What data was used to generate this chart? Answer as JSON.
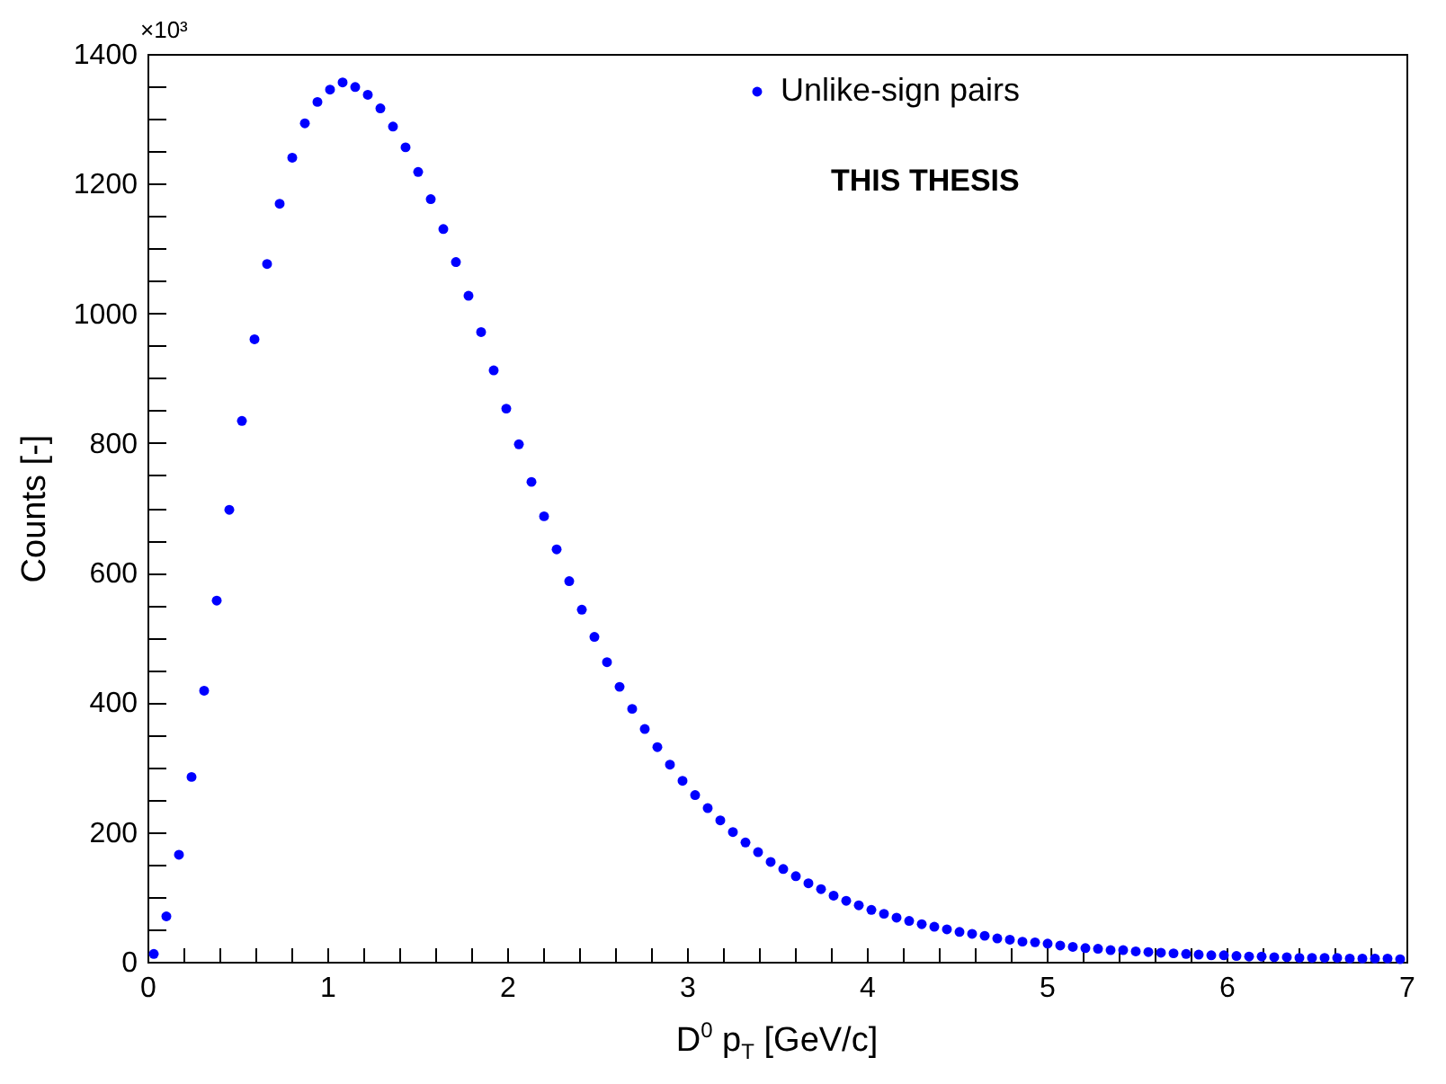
{
  "chart_data": {
    "type": "scatter",
    "xlabel": "D$^{0}$ p$_{T}$ [GeV/c]",
    "ylabel": "Counts [-]",
    "annotations": [
      "×10³",
      "THIS THESIS"
    ],
    "x": [
      0.035,
      0.105,
      0.175,
      0.245,
      0.315,
      0.385,
      0.455,
      0.525,
      0.595,
      0.665,
      0.735,
      0.805,
      0.875,
      0.945,
      1.015,
      1.085,
      1.155,
      1.225,
      1.295,
      1.365,
      1.435,
      1.505,
      1.575,
      1.645,
      1.715,
      1.785,
      1.855,
      1.925,
      1.995,
      2.065,
      2.135,
      2.205,
      2.275,
      2.345,
      2.415,
      2.485,
      2.555,
      2.625,
      2.695,
      2.765,
      2.835,
      2.905,
      2.975,
      3.045,
      3.115,
      3.185,
      3.255,
      3.325,
      3.395,
      3.465,
      3.535,
      3.605,
      3.675,
      3.745,
      3.815,
      3.885,
      3.955,
      4.025,
      4.095,
      4.165,
      4.235,
      4.305,
      4.375,
      4.445,
      4.515,
      4.585,
      4.655,
      4.725,
      4.795,
      4.865,
      4.935,
      5.005,
      5.075,
      5.145,
      5.215,
      5.285,
      5.355,
      5.425,
      5.495,
      5.565,
      5.635,
      5.705,
      5.775,
      5.845,
      5.915,
      5.985,
      6.055,
      6.125,
      6.195,
      6.265,
      6.335,
      6.405,
      6.475,
      6.545,
      6.615,
      6.685,
      6.755,
      6.825,
      6.895,
      6.965
    ],
    "series": [
      {
        "name": "Unlike-sign pairs",
        "color": "#0000ff",
        "values": [
          12,
          70,
          165,
          285,
          418,
          557,
          697,
          834,
          960,
          1076,
          1169,
          1240,
          1293,
          1326,
          1345,
          1356,
          1349,
          1337,
          1316,
          1288,
          1256,
          1218,
          1176,
          1130,
          1079,
          1027,
          971,
          912,
          853,
          798,
          740,
          687,
          636,
          587,
          543,
          501,
          462,
          424,
          390,
          359,
          331,
          304,
          279,
          257,
          237,
          218,
          200,
          184,
          169,
          154,
          143,
          132,
          121,
          112,
          102,
          94,
          87,
          80,
          74,
          68,
          63,
          58,
          54,
          50,
          46,
          43,
          40,
          36,
          34,
          31,
          30,
          28,
          25,
          23,
          21,
          20,
          18,
          18,
          16,
          15,
          14,
          13,
          12,
          11,
          10,
          10,
          9,
          8,
          8,
          7,
          7,
          6,
          6,
          6,
          6,
          5,
          5,
          5,
          5,
          4
        ]
      }
    ],
    "xlim": [
      0,
      7
    ],
    "xticks": [
      0,
      {
        "value": 0.2,
        "label": null
      },
      {
        "value": 0.4,
        "label": null
      },
      {
        "value": 0.6,
        "label": null
      },
      {
        "value": 0.8,
        "label": null
      },
      1,
      {
        "value": 1.2,
        "label": null
      },
      {
        "value": 1.4,
        "label": null
      },
      {
        "value": 1.6,
        "label": null
      },
      {
        "value": 1.8,
        "label": null
      },
      2,
      {
        "value": 2.2,
        "label": null
      },
      {
        "value": 2.4,
        "label": null
      },
      {
        "value": 2.6,
        "label": null
      },
      {
        "value": 2.8,
        "label": null
      },
      3,
      {
        "value": 3.2,
        "label": null
      },
      {
        "value": 3.4,
        "label": null
      },
      {
        "value": 3.6,
        "label": null
      },
      {
        "value": 3.8,
        "label": null
      },
      4,
      {
        "value": 4.2,
        "label": null
      },
      {
        "value": 4.4,
        "label": null
      },
      {
        "value": 4.6,
        "label": null
      },
      {
        "value": 4.8,
        "label": null
      },
      5,
      {
        "value": 5.2,
        "label": null
      },
      {
        "value": 5.4,
        "label": null
      },
      {
        "value": 5.6,
        "label": null
      },
      {
        "value": 5.8,
        "label": null
      },
      6,
      {
        "value": 6.2,
        "label": null
      },
      {
        "value": 6.4,
        "label": null
      },
      {
        "value": 6.6,
        "label": null
      },
      {
        "value": 6.8,
        "label": null
      },
      7
    ],
    "ylim": [
      0,
      1400
    ],
    "yticks": [
      0,
      {
        "value": 50,
        "label": null
      },
      {
        "value": 100,
        "label": null
      },
      {
        "value": 150,
        "label": null
      },
      200,
      {
        "value": 250,
        "label": null
      },
      {
        "value": 300,
        "label": null
      },
      {
        "value": 350,
        "label": null
      },
      400,
      {
        "value": 450,
        "label": null
      },
      {
        "value": 500,
        "label": null
      },
      {
        "value": 550,
        "label": null
      },
      600,
      {
        "value": 650,
        "label": null
      },
      {
        "value": 700,
        "label": null
      },
      {
        "value": 750,
        "label": null
      },
      800,
      {
        "value": 850,
        "label": null
      },
      {
        "value": 900,
        "label": null
      },
      {
        "value": 950,
        "label": null
      },
      1000,
      {
        "value": 1050,
        "label": null
      },
      {
        "value": 1100,
        "label": null
      },
      {
        "value": 1150,
        "label": null
      },
      1200,
      {
        "value": 1250,
        "label": null
      },
      {
        "value": 1300,
        "label": null
      },
      {
        "value": 1350,
        "label": null
      },
      1400
    ],
    "marker": "circle",
    "legend": "top right",
    "grid": false
  }
}
